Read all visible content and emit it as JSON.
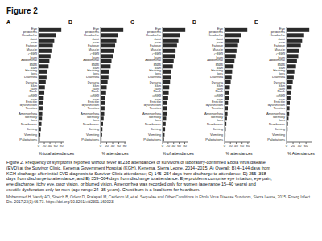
{
  "title": "Figure 2",
  "annotations": [
    "Figure 2. Frequency of symptoms reported without fever at 238 attendances of survivors of laboratory-confirmed Ebola virus disease\n(EVD) at the Survivor Clinic, Kenema Government Hospital (KGH), Kenema, Sierra Leone, 2014–2015. A) Overall; B) 4–144 days from\nKGH discharge after initial EVD diagnosis to Survivor Clinic attendance; C) 145–254 days from discharge to attendance; D) 255–358\ndays from discharge to attendance; and E) 359–504 days from discharge to attendance. Eye problems comprise eye irritation, eye pain,\neye discharge, itchy eye, poor vision, or blurred vision. Amenorrhea was recorded only for women (age range 15–40 years) and\nerectile dysfunction only for men (age range 24–35 years). Chest burn is a local term for heartburn.",
    "Mohammed H, Vandy AO, Stretch B, Odero D, Pralapatl M, Calderon M, et al. Sequelae and Other Conditions in Ebola Virus Disease Survivors, Sierra Leone, 2015. Emerg Infect\nDis. 2017;23(1):66-73. https://doi.org/10.3201/eid2301.160023."
  ],
  "chart_data": [
    {
      "type": "bar",
      "orientation": "horizontal",
      "title": "A",
      "xlabel": "% total attendances",
      "categories": [
        "Eye problems",
        "Headache",
        "Joint pain",
        "Fatigue",
        "Muscle pain",
        "Chest burn",
        "Abdominal pain",
        "Back pain",
        "Hearing loss",
        "Diarrhea",
        "Dysuria",
        "Skin rash",
        "Neck pain",
        "Chest pain",
        "Erectile dysfunction",
        "Tinnitus",
        "Amenorrhea",
        "Memory loss",
        "Numbness",
        "Itching",
        "Vomiting",
        "Palpitations"
      ],
      "values": [
        80,
        60,
        55,
        50,
        45,
        42,
        38,
        35,
        30,
        28,
        25,
        22,
        20,
        18,
        15,
        14,
        13,
        12,
        10,
        8,
        6,
        4
      ],
      "color": "#2a2a2a",
      "xlim": [
        0,
        88
      ],
      "xticks": [
        0,
        20,
        40,
        60,
        80
      ],
      "grid": false
    },
    {
      "type": "bar",
      "orientation": "horizontal",
      "title": "B",
      "xlabel": "% attendances",
      "categories": [
        "Eye problems",
        "Headache",
        "Joint pain",
        "Fatigue",
        "Muscle pain",
        "Chest burn",
        "Abdominal pain",
        "Back pain",
        "Hearing loss",
        "Diarrhea",
        "Dysuria",
        "Skin rash",
        "Neck pain",
        "Chest pain",
        "Erectile dysfunction",
        "Tinnitus",
        "Amenorrhea",
        "Memory loss",
        "Numbness",
        "Itching",
        "Vomiting",
        "Palpitations"
      ],
      "values": [
        75,
        58,
        52,
        48,
        43,
        40,
        36,
        33,
        28,
        26,
        23,
        20,
        18,
        16,
        14,
        13,
        12,
        10,
        8,
        6,
        5,
        3
      ],
      "color": "#2a2a2a",
      "xlim": [
        0,
        82.5
      ],
      "xticks": [
        0,
        20,
        40,
        60,
        80
      ],
      "grid": false
    },
    {
      "type": "bar",
      "orientation": "horizontal",
      "title": "C",
      "xlabel": "% of attendances",
      "categories": [
        "Eye problems",
        "Headache",
        "Joint pain",
        "Fatigue",
        "Muscle pain",
        "Chest burn",
        "Abdominal pain",
        "Back pain",
        "Hearing loss",
        "Diarrhea",
        "Dysuria",
        "Skin rash",
        "Neck pain",
        "Chest pain",
        "Erectile dysfunction",
        "Tinnitus",
        "Amenorrhea",
        "Memory loss",
        "Numbness",
        "Itching",
        "Vomiting",
        "Palpitations"
      ],
      "values": [
        82,
        62,
        57,
        52,
        47,
        44,
        40,
        37,
        32,
        30,
        27,
        24,
        22,
        20,
        17,
        16,
        15,
        13,
        11,
        9,
        7,
        5
      ],
      "color": "#2a2a2a",
      "xlim": [
        0,
        90.2
      ],
      "xticks": [
        0,
        20,
        40,
        60,
        80
      ],
      "grid": false
    },
    {
      "type": "bar",
      "orientation": "horizontal",
      "title": "D",
      "xlabel": "% attendances",
      "categories": [
        "Eye problems",
        "Headache",
        "Joint pain",
        "Fatigue",
        "Muscle pain",
        "Chest burn",
        "Abdominal pain",
        "Back pain",
        "Hearing loss",
        "Diarrhea",
        "Dysuria",
        "Skin rash",
        "Neck pain",
        "Chest pain",
        "Erectile dysfunction",
        "Tinnitus",
        "Amenorrhea",
        "Memory loss",
        "Numbness",
        "Itching",
        "Vomiting",
        "Palpitations"
      ],
      "values": [
        78,
        56,
        50,
        46,
        41,
        38,
        34,
        31,
        26,
        24,
        21,
        18,
        16,
        14,
        12,
        11,
        10,
        8,
        6,
        4,
        3,
        2
      ],
      "color": "#2a2a2a",
      "xlim": [
        0,
        85.8
      ],
      "xticks": [
        0,
        20,
        40,
        60,
        80
      ],
      "grid": false
    },
    {
      "type": "bar",
      "orientation": "horizontal",
      "title": "E",
      "xlabel": "% Attendances",
      "categories": [
        "Eye problems",
        "Headache",
        "Joint pain",
        "Fatigue",
        "Muscle pain",
        "Chest burn",
        "Abdominal pain",
        "Back pain",
        "Hearing loss",
        "Diarrhea",
        "Dysuria",
        "Skin rash",
        "Neck pain",
        "Chest pain",
        "Erectile dysfunction",
        "Tinnitus",
        "Amenorrhea",
        "Memory loss",
        "Numbness",
        "Itching",
        "Vomiting",
        "Palpitations"
      ],
      "values": [
        70,
        54,
        48,
        44,
        39,
        36,
        32,
        29,
        24,
        22,
        19,
        16,
        14,
        12,
        10,
        9,
        8,
        6,
        4,
        3,
        2,
        1
      ],
      "color": "#2a2a2a",
      "xlim": [
        0,
        77
      ],
      "xticks": [
        0,
        20,
        40,
        60
      ],
      "grid": false
    }
  ]
}
